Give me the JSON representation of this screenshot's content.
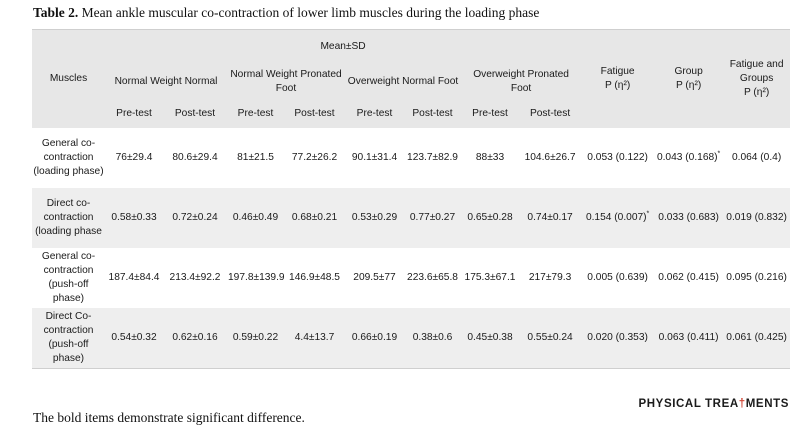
{
  "caption": {
    "label": "Table 2.",
    "text": " Mean ankle muscular co-contraction of lower limb muscles during the loading phase"
  },
  "table": {
    "muscles_header": "Muscles",
    "group_header": "Mean±SD",
    "groups": [
      "Normal Weight Normal",
      "Normal Weight Pronated Foot",
      "Overweight Normal Foot",
      "Overweight Pronated Foot"
    ],
    "stat_headers": [
      {
        "name": "Fatigue",
        "sub": "P (η²)"
      },
      {
        "name": "Group",
        "sub": "P (η²)"
      },
      {
        "name": "Fatigue and Groups",
        "sub": "P (η²)"
      }
    ],
    "test_headers": [
      "Pre-test",
      "Post-test",
      "Pre-test",
      "Post-test",
      "Pre-test",
      "Post-test",
      "Pre-test",
      "Post-test"
    ],
    "rows": [
      {
        "muscle": "General co-contraction (loading phase)",
        "values": [
          "76±29.4",
          "80.6±29.4",
          "81±21.5",
          "77.2±26.2",
          "90.1±31.4",
          "123.7±82.9",
          "88±33",
          "104.6±26.7"
        ],
        "fatigue": "0.053 (0.122)",
        "fatigue_sig": "",
        "group": "0.043 (0.168)",
        "group_sig": "*",
        "interaction": "0.064 (0.4)",
        "interaction_sig": ""
      },
      {
        "muscle": "Direct co-contraction (loading phase",
        "values": [
          "0.58±0.33",
          "0.72±0.24",
          "0.46±0.49",
          "0.68±0.21",
          "0.53±0.29",
          "0.77±0.27",
          "0.65±0.28",
          "0.74±0.17"
        ],
        "fatigue": "0.154 (0.007)",
        "fatigue_sig": "*",
        "group": "0.033 (0.683)",
        "group_sig": "",
        "interaction": "0.019 (0.832)",
        "interaction_sig": ""
      },
      {
        "muscle": "General co-contraction (push-off phase)",
        "values": [
          "187.4±84.4",
          "213.4±92.2",
          "197.8±139.9",
          "146.9±48.5",
          "209.5±77",
          "223.6±65.8",
          "175.3±67.1",
          "217±79.3"
        ],
        "fatigue": "0.005 (0.639)",
        "fatigue_sig": "",
        "group": "0.062 (0.415)",
        "group_sig": "",
        "interaction": "0.095 (0.216)",
        "interaction_sig": ""
      },
      {
        "muscle": "Direct Co-contraction (push-off phase)",
        "values": [
          "0.54±0.32",
          "0.62±0.16",
          "0.59±0.22",
          "4.4±13.7",
          "0.66±0.19",
          "0.38±0.6",
          "0.45±0.38",
          "0.55±0.24"
        ],
        "fatigue": "0.020 (0.353)",
        "fatigue_sig": "",
        "group": "0.063 (0.411)",
        "group_sig": "",
        "interaction": "0.061 (0.425)",
        "interaction_sig": ""
      }
    ]
  },
  "footnote": "The bold items demonstrate significant difference.",
  "brand": {
    "left": "PHYSICAL TREA",
    "mark": "†",
    "right": "MENTS"
  }
}
